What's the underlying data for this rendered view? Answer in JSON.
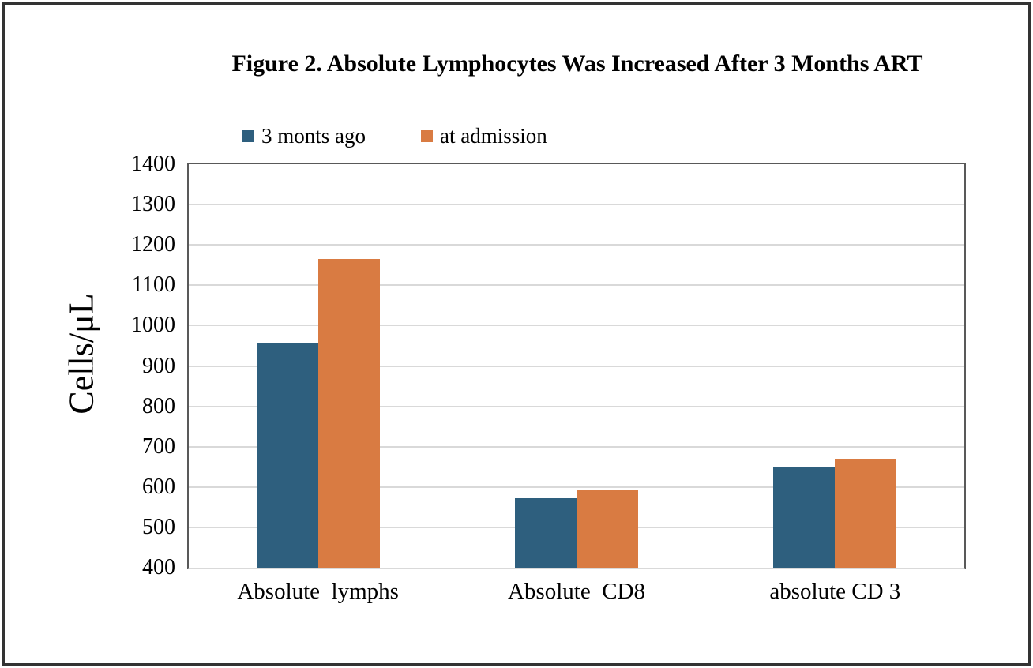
{
  "chart_data": {
    "type": "bar",
    "title": "Figure 2. Absolute Lymphocytes Was Increased After 3 Months ART",
    "ylabel": "Cells/μL",
    "xlabel": "",
    "categories": [
      "Absolute  lymphs",
      "Absolute  CD8",
      "absolute CD 3"
    ],
    "series": [
      {
        "name": "3 monts ago",
        "color": "#2E5F7E",
        "values": [
          958,
          573,
          651
        ]
      },
      {
        "name": "at admission",
        "color": "#D97B42",
        "values": [
          1165,
          592,
          670
        ]
      }
    ],
    "ylim": [
      400,
      1400
    ],
    "ytick_step": 100,
    "yticks": [
      1400,
      1300,
      1200,
      1100,
      1000,
      900,
      800,
      700,
      600,
      500,
      400
    ],
    "grid": true,
    "gridline_color": "#D9D9D9",
    "axis_border_color": "#595959",
    "legend_position": "top-left"
  }
}
